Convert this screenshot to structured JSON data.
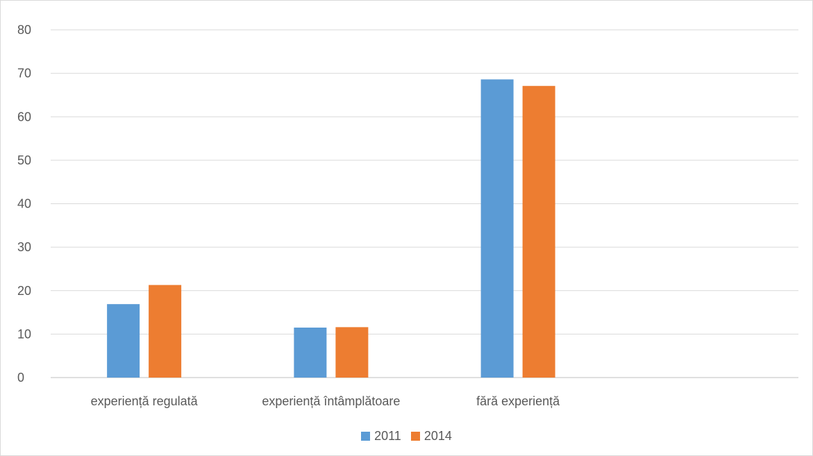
{
  "chart_data": {
    "type": "bar",
    "title": "",
    "xlabel": "",
    "ylabel": "",
    "ylim": [
      0,
      80
    ],
    "yticks": [
      0,
      10,
      20,
      30,
      40,
      50,
      60,
      70,
      80
    ],
    "grid": true,
    "legend_position": "bottom",
    "categories": [
      "experiență regulată",
      "experiență întâmplătoare",
      "fără experiență",
      ""
    ],
    "series": [
      {
        "name": "2011",
        "color": "#5b9bd5",
        "values": [
          16.9,
          11.5,
          68.6,
          null
        ]
      },
      {
        "name": "2014",
        "color": "#ed7d31",
        "values": [
          21.3,
          11.6,
          67.1,
          null
        ]
      }
    ]
  }
}
